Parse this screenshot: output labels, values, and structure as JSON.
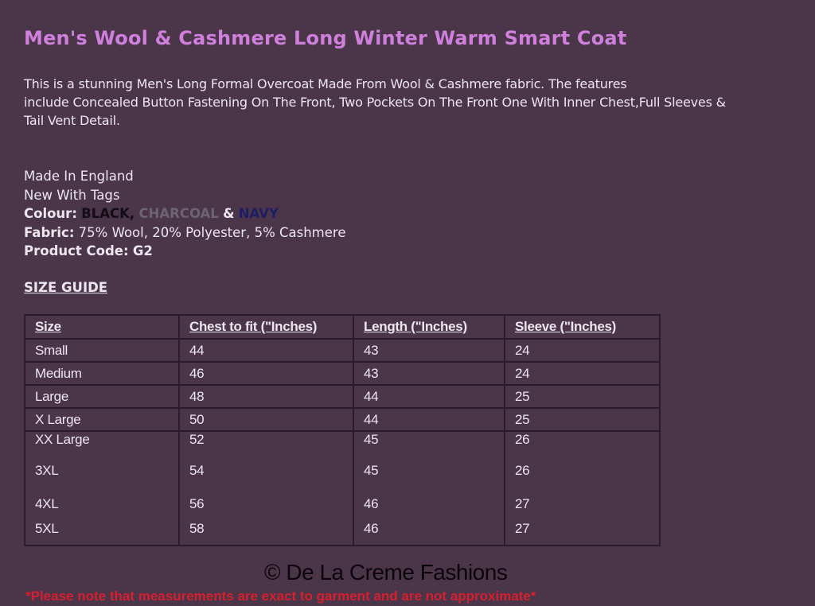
{
  "title": "Men's Wool & Cashmere Long Winter Warm Smart Coat",
  "description": [
    "This is a stunning Men's Long Formal Overcoat Made From Wool & Cashmere fabric. The features",
    "include Concealed Button Fastening On The Front, Two Pockets On The Front One With Inner Chest,Full Sleeves &",
    "Tail Vent Detail."
  ],
  "specs": {
    "made_in": "Made In England",
    "condition": "New With Tags",
    "colour_label": "Colour:",
    "colours": [
      "BLACK,",
      "CHARCOAL",
      "NAVY"
    ],
    "colour_joiner": "&",
    "colour_hex": {
      "black": "#120c14",
      "charcoal": "#6d6470",
      "navy": "#1d1d63"
    },
    "fabric_label": "Fabric:",
    "fabric": "75% Wool, 20% Polyester, 5% Cashmere",
    "code_label": "Product Code:",
    "code": "G2"
  },
  "size_guide": {
    "heading": "SIZE GUIDE",
    "headers": [
      "Size",
      "Chest to fit (\"Inches)",
      "Length (\"Inches)",
      "Sleeve (\"Inches)"
    ],
    "rows": [
      [
        "Small",
        "44",
        "43",
        "24"
      ],
      [
        "Medium",
        "46",
        "43",
        "24"
      ],
      [
        "Large",
        "48",
        "44",
        "25"
      ],
      [
        "X Large",
        "50",
        "44",
        "25"
      ],
      [
        "XX Large",
        "52",
        "45",
        "26"
      ],
      [
        "3XL",
        "54",
        "45",
        "26"
      ],
      [
        "4XL",
        "56",
        "46",
        "27"
      ],
      [
        "5XL",
        "58",
        "46",
        "27"
      ]
    ]
  },
  "note": "*Please note that measurements are exact to garment and are not approximate*",
  "watermark": "© De La Creme Fashions",
  "colors": {
    "background": "#4b3549",
    "title": "#cf7fdc",
    "note": "#d42030"
  }
}
